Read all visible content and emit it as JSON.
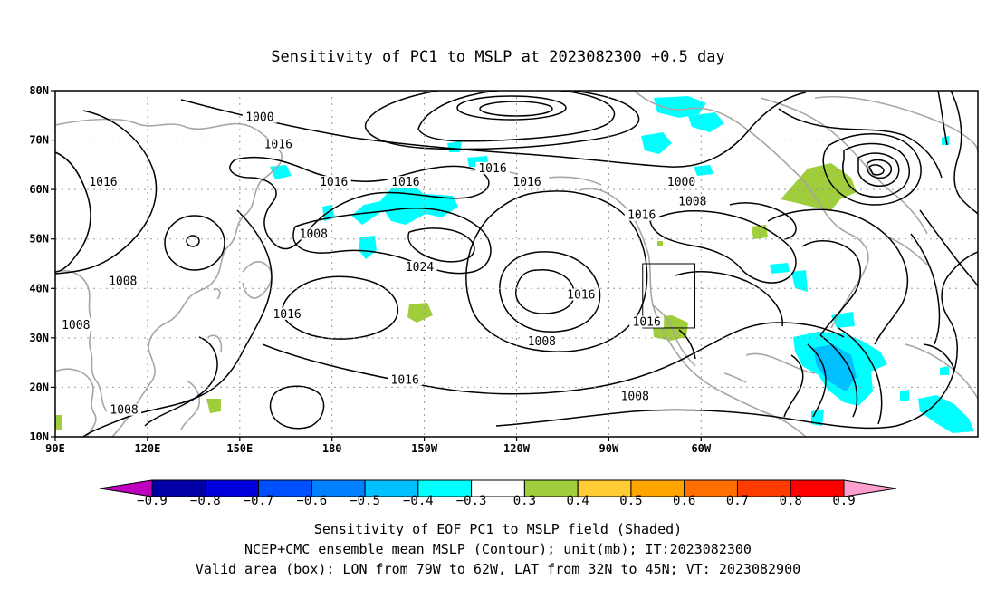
{
  "title": "Sensitivity of PC1 to MSLP at 2023082300 +0.5 day",
  "lat_ticks": [
    "80N",
    "70N",
    "60N",
    "50N",
    "40N",
    "30N",
    "20N",
    "10N"
  ],
  "lon_ticks": [
    "90E",
    "120E",
    "150E",
    "180",
    "150W",
    "120W",
    "90W",
    "60W"
  ],
  "contour_labels": [
    {
      "text": "1000",
      "lon": 156.5,
      "lat": 74.2
    },
    {
      "text": "1016",
      "lon": 162.5,
      "lat": 68.7
    },
    {
      "text": "1016",
      "lon": -127.8,
      "lat": 63.9
    },
    {
      "text": "1016",
      "lon": -179.4,
      "lat": 61.1
    },
    {
      "text": "1016",
      "lon": -156.1,
      "lat": 61.1
    },
    {
      "text": "1016",
      "lon": -116.6,
      "lat": 61.1
    },
    {
      "text": "1016",
      "lon": 105.6,
      "lat": 61.1
    },
    {
      "text": "1000",
      "lon": -66.4,
      "lat": 61.1
    },
    {
      "text": "1008",
      "lon": -62.8,
      "lat": 57.2
    },
    {
      "text": "1016",
      "lon": -79.3,
      "lat": 54.4
    },
    {
      "text": "1008",
      "lon": 174.0,
      "lat": 50.6
    },
    {
      "text": "1024",
      "lon": -151.5,
      "lat": 43.9
    },
    {
      "text": "1008",
      "lon": 112.0,
      "lat": 41.1
    },
    {
      "text": "1016",
      "lon": -99.0,
      "lat": 38.3
    },
    {
      "text": "1016",
      "lon": 165.4,
      "lat": 34.4
    },
    {
      "text": "1016",
      "lon": -77.7,
      "lat": 32.8
    },
    {
      "text": "1008",
      "lon": 96.7,
      "lat": 32.2
    },
    {
      "text": "1008",
      "lon": -111.8,
      "lat": 28.9
    },
    {
      "text": "1016",
      "lon": -156.3,
      "lat": 21.1
    },
    {
      "text": "1008",
      "lon": -81.5,
      "lat": 17.8
    },
    {
      "text": "1008",
      "lon": 112.4,
      "lat": 15.0
    }
  ],
  "valid_box": {
    "lon_min": -79,
    "lon_max": -62,
    "lat_min": 32,
    "lat_max": 45
  },
  "colorbar": {
    "labels": [
      "-0.9",
      "-0.8",
      "-0.7",
      "-0.6",
      "-0.5",
      "-0.4",
      "-0.3",
      "0.3",
      "0.4",
      "0.5",
      "0.6",
      "0.7",
      "0.8",
      "0.9"
    ],
    "colors": [
      "#bf00bf",
      "#0000a6",
      "#0000dc",
      "#0050ff",
      "#0080ff",
      "#00c0ff",
      "#00ffff",
      "#ffffff",
      "#a0cd3c",
      "#ffcc33",
      "#ffa500",
      "#ff7000",
      "#ff3c00",
      "#ff0000",
      "#ff9fcf"
    ]
  },
  "footer": {
    "line1": "Sensitivity of EOF PC1 to MSLP field (Shaded)",
    "line2": "NCEP+CMC ensemble mean MSLP (Contour); unit(mb); IT:2023082300",
    "line3": "Valid area (box): LON from 79W to 62W, LAT from 32N to 45N; VT: 2023082900"
  }
}
